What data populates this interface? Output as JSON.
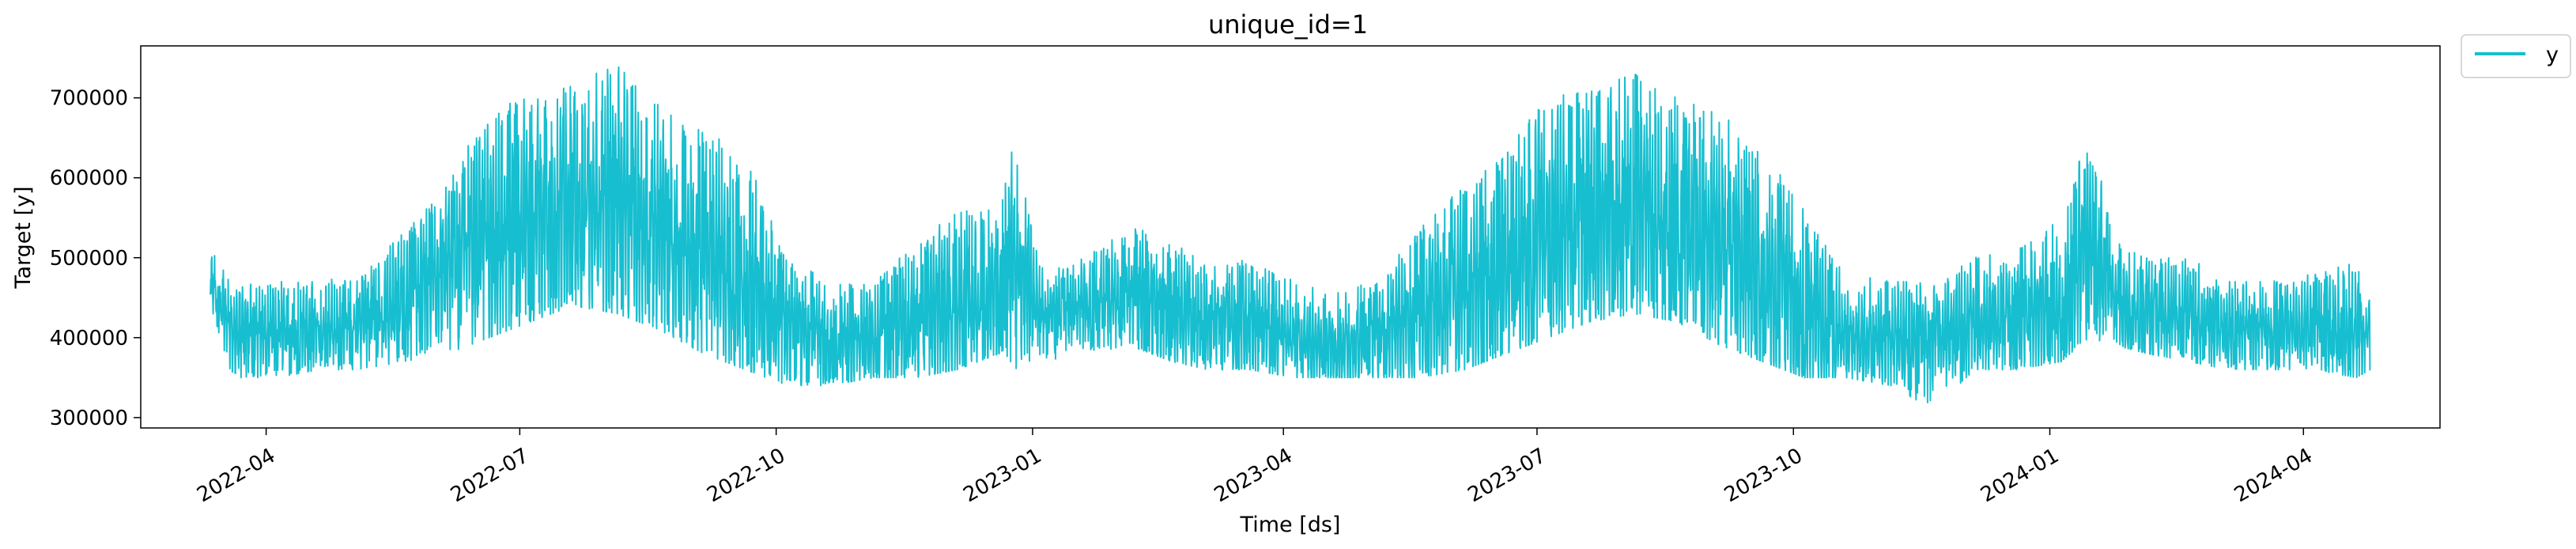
{
  "chart_data": {
    "type": "line",
    "title": "unique_id=1",
    "xlabel": "Time [ds]",
    "ylabel": "Target [y]",
    "x_tick_labels": [
      "2022-04",
      "2022-07",
      "2022-10",
      "2023-01",
      "2023-04",
      "2023-07",
      "2023-10",
      "2024-01",
      "2024-04"
    ],
    "x_ticks": [
      "2022-04-01",
      "2022-07-01",
      "2022-10-01",
      "2023-01-01",
      "2023-04-01",
      "2023-07-01",
      "2023-10-01",
      "2024-01-01",
      "2024-04-01"
    ],
    "y_tick_labels": [
      "300000",
      "400000",
      "500000",
      "600000",
      "700000"
    ],
    "y_ticks": [
      300000,
      400000,
      500000,
      600000,
      700000
    ],
    "xlim": [
      "2022-02-15",
      "2024-05-20"
    ],
    "ylim": [
      287000,
      765000
    ],
    "grid": false,
    "legend": {
      "position": "outside-top-right",
      "entries": [
        "y"
      ]
    },
    "series": [
      {
        "name": "y",
        "color": "#17becf",
        "envelope": {
          "x": [
            "2022-03-12",
            "2022-03-20",
            "2022-04-05",
            "2022-04-20",
            "2022-05-05",
            "2022-05-20",
            "2022-06-05",
            "2022-06-20",
            "2022-07-05",
            "2022-07-20",
            "2022-08-05",
            "2022-08-20",
            "2022-09-05",
            "2022-09-20",
            "2022-10-05",
            "2022-10-20",
            "2022-11-05",
            "2022-11-20",
            "2022-12-05",
            "2022-12-20",
            "2022-12-25",
            "2023-01-05",
            "2023-01-20",
            "2023-02-05",
            "2023-02-20",
            "2023-03-05",
            "2023-03-20",
            "2023-04-05",
            "2023-04-20",
            "2023-05-05",
            "2023-05-20",
            "2023-06-05",
            "2023-06-20",
            "2023-07-05",
            "2023-07-20",
            "2023-08-05",
            "2023-08-20",
            "2023-09-05",
            "2023-09-20",
            "2023-10-05",
            "2023-10-20",
            "2023-11-05",
            "2023-11-20",
            "2023-12-05",
            "2023-12-20",
            "2024-01-05",
            "2024-01-15",
            "2024-01-25",
            "2024-02-05",
            "2024-02-20",
            "2024-03-05",
            "2024-03-20",
            "2024-04-05",
            "2024-04-20",
            "2024-04-25"
          ],
          "max": [
            510000,
            470000,
            470000,
            470000,
            480000,
            530000,
            590000,
            690000,
            700000,
            720000,
            740000,
            690000,
            660000,
            630000,
            500000,
            470000,
            470000,
            520000,
            560000,
            560000,
            640000,
            480000,
            500000,
            540000,
            520000,
            490000,
            500000,
            470000,
            460000,
            470000,
            540000,
            590000,
            640000,
            700000,
            710000,
            730000,
            700000,
            680000,
            640000,
            560000,
            480000,
            470000,
            470000,
            500000,
            510000,
            550000,
            660000,
            520000,
            500000,
            500000,
            470000,
            470000,
            480000,
            500000,
            460000
          ],
          "min": [
            440000,
            350000,
            350000,
            360000,
            360000,
            370000,
            380000,
            400000,
            420000,
            440000,
            430000,
            410000,
            380000,
            360000,
            340000,
            340000,
            350000,
            350000,
            360000,
            380000,
            360000,
            370000,
            380000,
            390000,
            370000,
            360000,
            360000,
            350000,
            350000,
            350000,
            350000,
            360000,
            380000,
            400000,
            420000,
            430000,
            420000,
            390000,
            370000,
            350000,
            350000,
            340000,
            310000,
            360000,
            360000,
            370000,
            400000,
            390000,
            380000,
            370000,
            360000,
            360000,
            360000,
            350000,
            360000
          ],
          "mean": [
            470000,
            410000,
            410000,
            410000,
            420000,
            450000,
            490000,
            530000,
            550000,
            560000,
            570000,
            540000,
            510000,
            470000,
            420000,
            400000,
            400000,
            420000,
            440000,
            450000,
            500000,
            430000,
            440000,
            450000,
            440000,
            420000,
            420000,
            400000,
            390000,
            400000,
            430000,
            460000,
            490000,
            530000,
            550000,
            560000,
            550000,
            520000,
            480000,
            430000,
            400000,
            400000,
            400000,
            420000,
            430000,
            440000,
            520000,
            440000,
            430000,
            430000,
            410000,
            410000,
            410000,
            410000,
            400000
          ]
        }
      }
    ]
  }
}
